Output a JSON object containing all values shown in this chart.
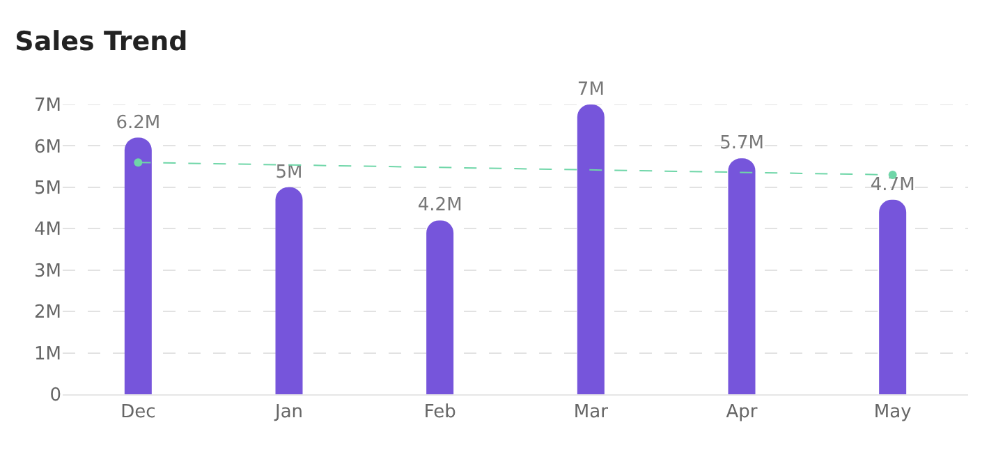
{
  "chart_data": {
    "type": "bar",
    "title": "Sales Trend",
    "categories": [
      "Dec",
      "Jan",
      "Feb",
      "Mar",
      "Apr",
      "May"
    ],
    "series": [
      {
        "color": "#7655db",
        "values": [
          6.2,
          5,
          4.2,
          7,
          5.7,
          4.7
        ],
        "value_labels": [
          "6.2M",
          "5M",
          "4.2M",
          "7M",
          "5.7M",
          "4.7M"
        ]
      },
      {
        "type": "line",
        "color": "#6fd6a8",
        "x": [
          "Dec",
          "May"
        ],
        "values": [
          5.6,
          5.3
        ],
        "line_style": "dashed",
        "marker": "circle"
      }
    ],
    "ylim": [
      0,
      7
    ],
    "yticks": [
      {
        "value": 0,
        "label": "0"
      },
      {
        "value": 1,
        "label": "1M"
      },
      {
        "value": 2,
        "label": "2M"
      },
      {
        "value": 3,
        "label": "3M"
      },
      {
        "value": 4,
        "label": "4M"
      },
      {
        "value": 5,
        "label": "5M"
      },
      {
        "value": 6,
        "label": "6M"
      },
      {
        "value": 7,
        "label": "7M"
      }
    ],
    "grid": "y"
  }
}
